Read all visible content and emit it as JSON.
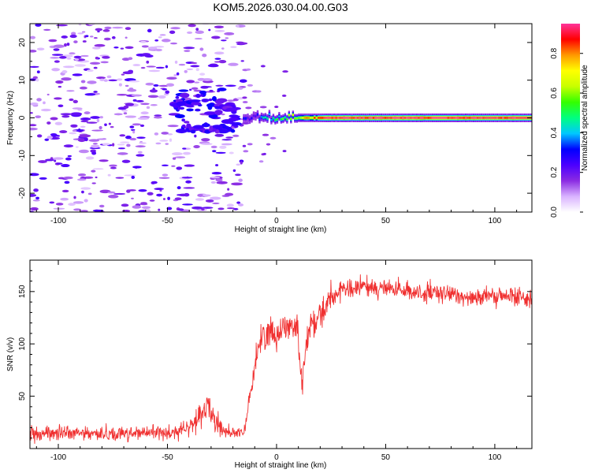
{
  "title": "KOM5.2026.030.04.00.G03",
  "chart_data": [
    {
      "type": "heatmap",
      "title": "KOM5.2026.030.04.00.G03",
      "xlabel": "Height of straight line (km)",
      "ylabel": "Frequency (Hz)",
      "xlim": [
        -113,
        117
      ],
      "ylim": [
        -25,
        25
      ],
      "xticks": [
        -100,
        -50,
        0,
        50,
        100
      ],
      "yticks": [
        -20,
        -10,
        0,
        10,
        20
      ],
      "colorbar": {
        "label": "Normalized spectral amplitude",
        "range": [
          0,
          0.95
        ],
        "ticks": [
          0.0,
          0.2,
          0.4,
          0.6,
          0.8
        ],
        "colors": [
          "#ffffff",
          "#d9b3ff",
          "#8a2be2",
          "#4b00ff",
          "#0000ff",
          "#00c8ff",
          "#00ff80",
          "#33ff00",
          "#c8ff00",
          "#ffff00",
          "#ff9900",
          "#ff0000",
          "#ff3399"
        ]
      },
      "carrier": {
        "frequency_hz": 0,
        "onset_km": -15,
        "peak_amplitude": 0.95
      },
      "noise_region_km": [
        -113,
        -15
      ],
      "noise_amplitude_range": [
        0.05,
        0.25
      ]
    },
    {
      "type": "line",
      "xlabel": "Height of straight line (km)",
      "ylabel": "SNR (v/v)",
      "xlim": [
        -113,
        117
      ],
      "ylim": [
        0,
        180
      ],
      "xticks": [
        -100,
        -50,
        0,
        50,
        100
      ],
      "yticks": [
        50,
        100,
        150
      ],
      "color": "#f03030",
      "series": [
        {
          "name": "SNR",
          "x": [
            -113,
            -100,
            -80,
            -60,
            -45,
            -40,
            -35,
            -32,
            -30,
            -28,
            -25,
            -20,
            -15,
            -10,
            -8,
            -5,
            0,
            5,
            10,
            12,
            15,
            20,
            25,
            30,
            40,
            50,
            60,
            70,
            80,
            90,
            100,
            110,
            117
          ],
          "y": [
            14,
            15,
            14,
            15,
            16,
            20,
            30,
            45,
            35,
            25,
            18,
            15,
            14,
            80,
            100,
            110,
            110,
            120,
            115,
            75,
            115,
            130,
            145,
            150,
            155,
            153,
            150,
            148,
            147,
            145,
            145,
            145,
            145
          ]
        }
      ]
    }
  ]
}
